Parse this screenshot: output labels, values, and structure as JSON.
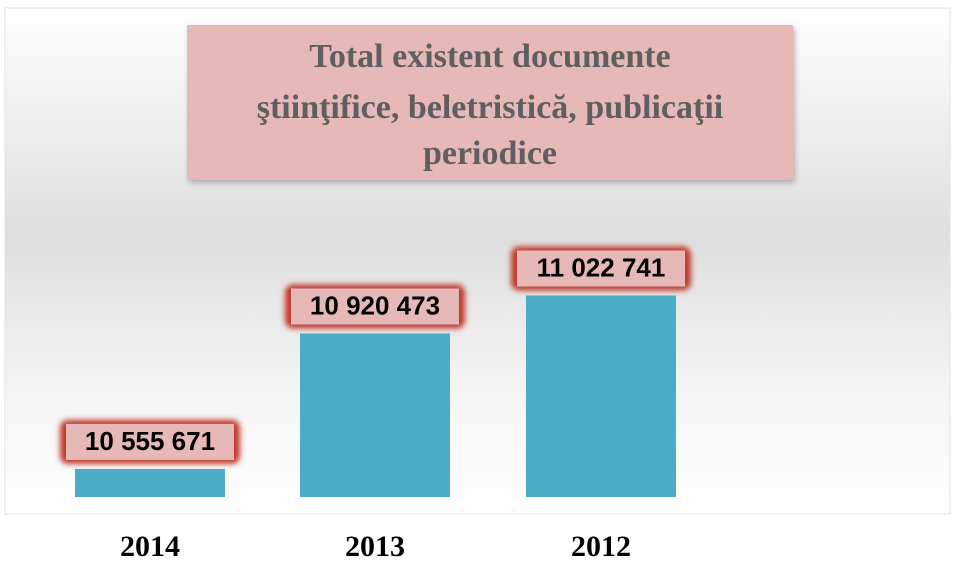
{
  "chart_data": {
    "type": "bar",
    "title": [
      "Total existent documente",
      "ştiinţifice, beletristică, publicaţii",
      "periodice"
    ],
    "categories": [
      "2014",
      "2013",
      "2012"
    ],
    "values": [
      10555671,
      10920473,
      11022741
    ],
    "value_labels": [
      "10 555 671",
      "10 920 473",
      "11 022 741"
    ],
    "color": "#4bacc6",
    "ylim": [
      10480000,
      11280000
    ]
  }
}
